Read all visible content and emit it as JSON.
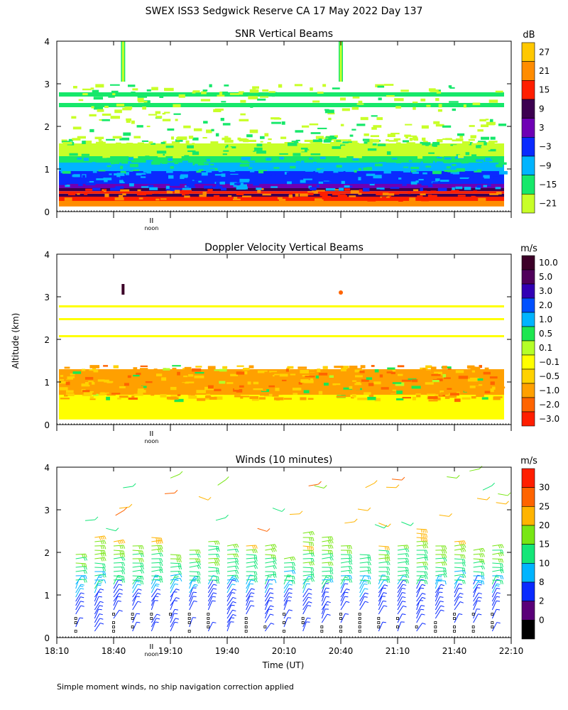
{
  "title": "SWEX ISS3 Sedgwick Reserve CA  17 May 2022 Day 137",
  "ylabel": "Altitude (km)",
  "xlabel": "Time (UT)",
  "footer": "Simple moment winds, no ship navigation correction applied",
  "noon_label": "noon",
  "noon_time": "19:00",
  "chart_data": [
    {
      "type": "heatmap",
      "title": "SNR Vertical Beams",
      "xlabel": "Time (UT)",
      "ylabel": "Altitude (km)",
      "xlim": [
        "18:10",
        "22:10"
      ],
      "ylim": [
        0,
        4
      ],
      "yticks": [
        "0",
        "1",
        "2",
        "3",
        "4"
      ],
      "colorbar": {
        "unit": "dB",
        "labels": [
          "27",
          "21",
          "15",
          "9",
          "3",
          "−3",
          "−9",
          "−15",
          "−21"
        ],
        "colors": [
          "#ffc800",
          "#ff8c00",
          "#ff1e00",
          "#3c0050",
          "#6e00b4",
          "#0a2aff",
          "#00b4ff",
          "#16e86a",
          "#c8ff28"
        ]
      },
      "layers": [
        {
          "from_km": 0.12,
          "to_km": 0.25,
          "color": "#ff8c00"
        },
        {
          "from_km": 0.25,
          "to_km": 0.35,
          "color": "#ff1e00"
        },
        {
          "from_km": 0.35,
          "to_km": 0.42,
          "color": "#3c0050"
        },
        {
          "from_km": 0.42,
          "to_km": 0.48,
          "color": "#ff1e00"
        },
        {
          "from_km": 0.48,
          "to_km": 0.55,
          "color": "#3c0050"
        },
        {
          "from_km": 0.55,
          "to_km": 0.65,
          "color": "#6e00b4"
        },
        {
          "from_km": 0.65,
          "to_km": 0.95,
          "color": "#0a2aff"
        },
        {
          "from_km": 0.95,
          "to_km": 1.15,
          "color": "#00b4ff"
        },
        {
          "from_km": 1.15,
          "to_km": 1.3,
          "color": "#16e86a"
        },
        {
          "from_km": 1.3,
          "to_km": 1.6,
          "color": "#c8ff28"
        },
        {
          "from_km": 2.45,
          "to_km": 2.55,
          "color": "#16e86a"
        },
        {
          "from_km": 2.7,
          "to_km": 2.8,
          "color": "#16e86a"
        }
      ]
    },
    {
      "type": "heatmap",
      "title": "Doppler Velocity Vertical Beams",
      "xlabel": "Time (UT)",
      "ylabel": "Altitude (km)",
      "xlim": [
        "18:10",
        "22:10"
      ],
      "ylim": [
        0,
        4
      ],
      "yticks": [
        "0",
        "1",
        "2",
        "3",
        "4"
      ],
      "colorbar": {
        "unit": "m/s",
        "labels": [
          "10.0",
          "5.0",
          "3.0",
          "2.0",
          "1.0",
          "0.5",
          "0.1",
          "−0.1",
          "−0.5",
          "−1.0",
          "−2.0",
          "−3.0"
        ],
        "colors": [
          "#3c0028",
          "#50005a",
          "#3200b4",
          "#0050ff",
          "#00b4ff",
          "#1ee650",
          "#b4ff28",
          "#ffff00",
          "#ffd200",
          "#ffa000",
          "#ff6400",
          "#ff1e00"
        ]
      },
      "layers": [
        {
          "from_km": 0.12,
          "to_km": 0.7,
          "color": "#ffff00"
        },
        {
          "from_km": 0.7,
          "to_km": 1.3,
          "color": "#ffa000"
        },
        {
          "from_km": 2.05,
          "to_km": 2.1,
          "color": "#ffff00"
        },
        {
          "from_km": 2.45,
          "to_km": 2.5,
          "color": "#ffff00"
        },
        {
          "from_km": 2.75,
          "to_km": 2.8,
          "color": "#ffff00"
        }
      ]
    },
    {
      "type": "wind-barbs",
      "title": "Winds (10 minutes)",
      "xlabel": "Time (UT)",
      "ylabel": "Altitude (km)",
      "xlim": [
        "18:10",
        "22:10"
      ],
      "ylim": [
        0,
        4
      ],
      "yticks": [
        "0",
        "1",
        "2",
        "3",
        "4"
      ],
      "xticks": [
        "18:10",
        "18:40",
        "19:10",
        "19:40",
        "20:10",
        "20:40",
        "21:10",
        "21:40",
        "22:10"
      ],
      "colorbar": {
        "unit": "m/s",
        "labels": [
          "30",
          "25",
          "20",
          "15",
          "10",
          "8",
          "2",
          "0"
        ],
        "colors": [
          "#ff1e00",
          "#ff6400",
          "#ffb400",
          "#78e614",
          "#14e678",
          "#00b4ff",
          "#0a2aff",
          "#5a0078",
          "#000000"
        ]
      },
      "profile_times": [
        "18:20",
        "18:30",
        "18:40",
        "18:50",
        "19:00",
        "19:10",
        "19:20",
        "19:30",
        "19:40",
        "19:50",
        "20:00",
        "20:10",
        "20:20",
        "20:30",
        "20:40",
        "20:50",
        "21:00",
        "21:10",
        "21:20",
        "21:30",
        "21:40",
        "21:50",
        "22:00"
      ],
      "speed_by_altitude_km": [
        {
          "alt": 0.2,
          "speed": 4
        },
        {
          "alt": 0.8,
          "speed": 6
        },
        {
          "alt": 1.2,
          "speed": 9
        },
        {
          "alt": 1.6,
          "speed": 12
        },
        {
          "alt": 2.0,
          "speed": 16
        },
        {
          "alt": 2.4,
          "speed": 22
        },
        {
          "alt": 3.0,
          "speed": 18
        },
        {
          "alt": 3.8,
          "speed": 20
        }
      ]
    }
  ]
}
